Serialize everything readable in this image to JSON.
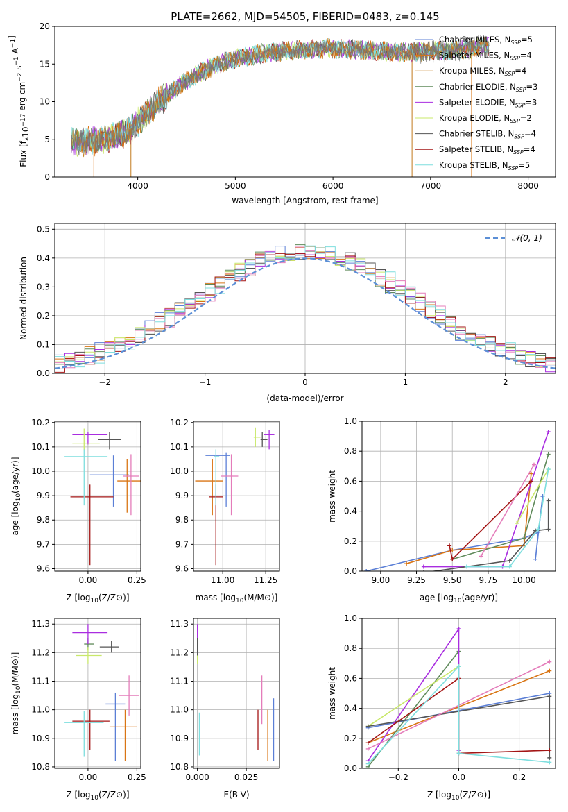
{
  "figure": {
    "title": "PLATE=2662, MJD=54505, FIBERID=0483, z=0.145"
  },
  "colors": {
    "c0": "#5b7fd6",
    "c1": "#d97514",
    "c2": "#5f8a5a",
    "c3": "#a92de0",
    "c4": "#c9e86a",
    "c5": "#555555",
    "c6": "#a31515",
    "c7": "#e47cba",
    "c8": "#7ddede"
  },
  "chart_data": [
    {
      "id": "spectrum",
      "type": "line",
      "xlabel": "wavelength [Angstrom, rest frame]",
      "ylabel": "Flux [f_λ10^-17 erg cm^-2 s^-1 A^-1]",
      "xlim": [
        3150,
        8280
      ],
      "ylim": [
        0,
        20
      ],
      "xticks": [
        4000,
        5000,
        6000,
        7000,
        8000
      ],
      "yticks": [
        0,
        5,
        10,
        15,
        20
      ],
      "grid": false,
      "legend_position": "right",
      "series": [
        {
          "name": "Chabrier MILES, N_SSP=5",
          "color": "#5b7fd6"
        },
        {
          "name": "Salpeter MILES, N_SSP=4",
          "color": "#d97514"
        },
        {
          "name": "Kroupa MILES, N_SSP=4",
          "color": "#c27a1e"
        },
        {
          "name": "Chabrier ELODIE, N_SSP=3",
          "color": "#5f8a5a"
        },
        {
          "name": "Salpeter ELODIE, N_SSP=3",
          "color": "#a92de0"
        },
        {
          "name": "Kroupa ELODIE, N_SSP=2",
          "color": "#c9e86a"
        },
        {
          "name": "Chabrier STELIB, N_SSP=4",
          "color": "#555555"
        },
        {
          "name": "Salpeter STELIB, N_SSP=4",
          "color": "#a31515"
        },
        {
          "name": "Kroupa STELIB, N_SSP=5",
          "color": "#7ddede"
        }
      ],
      "continuum_x": [
        3320,
        3600,
        3900,
        4200,
        4500,
        4800,
        5100,
        5400,
        5700,
        6000,
        6400,
        6800,
        7200,
        7500,
        7600
      ],
      "continuum_y": [
        4.6,
        4.8,
        6.0,
        9.8,
        12.8,
        14.9,
        16.0,
        16.6,
        16.9,
        17.1,
        16.8,
        16.5,
        16.8,
        17.2,
        17.5
      ]
    },
    {
      "id": "residuals",
      "type": "histogram",
      "xlabel": "(data-model)/error",
      "ylabel": "Normed distribution",
      "xlim": [
        -2.5,
        2.5
      ],
      "ylim": [
        0,
        0.52
      ],
      "xticks": [
        -2,
        -1,
        0,
        1,
        2
      ],
      "yticks": [
        0.0,
        0.1,
        0.2,
        0.3,
        0.4,
        0.5
      ],
      "grid": true,
      "legend": [
        {
          "name": "𝒩(0, 1)",
          "style": "dashed",
          "color": "#5b7fd6"
        }
      ],
      "legend_position": "top-right",
      "bin_width": 0.1
    },
    {
      "id": "age-vs-Z",
      "type": "errorbar",
      "xlabel": "Z [log10(Z/Z⊙)]",
      "ylabel": "age  [log10(age/yr)]",
      "xlim": [
        -0.17,
        0.27
      ],
      "ylim": [
        9.59,
        10.205
      ],
      "xticks": [
        0.0,
        0.25
      ],
      "yticks": [
        9.6,
        9.7,
        9.8,
        9.9,
        10.0,
        10.1,
        10.2
      ],
      "grid": true,
      "points": [
        {
          "c": "c0",
          "x": 0.13,
          "xerr": [
            0.12,
            0.08
          ],
          "y": 9.985,
          "yerr": [
            0.13,
            0.08
          ]
        },
        {
          "c": "c1",
          "x": 0.2,
          "xerr": [
            0.05,
            0.07
          ],
          "y": 9.96,
          "yerr": [
            0.13,
            0.09
          ]
        },
        {
          "c": "c3",
          "x": 0.0,
          "xerr": [
            0.08,
            0.1
          ],
          "y": 10.15,
          "yerr": [
            0.04,
            0.01
          ]
        },
        {
          "c": "c4",
          "x": -0.02,
          "xerr": [
            0.06,
            0.08
          ],
          "y": 10.115,
          "yerr": [
            0.03,
            0.06
          ]
        },
        {
          "c": "c5",
          "x": 0.11,
          "xerr": [
            0.06,
            0.06
          ],
          "y": 10.13,
          "yerr": [
            0.04,
            0.03
          ]
        },
        {
          "c": "c6",
          "x": 0.01,
          "xerr": [
            0.1,
            0.12
          ],
          "y": 9.895,
          "yerr": [
            0.28,
            0.05
          ]
        },
        {
          "c": "c7",
          "x": 0.22,
          "xerr": [
            0.04,
            0.04
          ],
          "y": 9.98,
          "yerr": [
            0.16,
            0.09
          ]
        },
        {
          "c": "c8",
          "x": -0.02,
          "xerr": [
            0.1,
            0.12
          ],
          "y": 10.06,
          "yerr": [
            0.2,
            0.03
          ]
        }
      ]
    },
    {
      "id": "age-vs-mass",
      "type": "errorbar",
      "xlabel": "mass [log10(M/M⊙)]",
      "ylabel": "",
      "xlim": [
        10.83,
        11.33
      ],
      "ylim": [
        9.59,
        10.205
      ],
      "xticks": [
        11.0,
        11.25
      ],
      "yticks": [
        9.6,
        9.7,
        9.8,
        9.9,
        10.0,
        10.1,
        10.2
      ],
      "grid": true,
      "points": [
        {
          "c": "c0",
          "x": 11.02,
          "xerr": [
            0.12,
            0.02
          ],
          "y": 10.065,
          "yerr": [
            0.21,
            0.01
          ]
        },
        {
          "c": "c1",
          "x": 10.94,
          "xerr": [
            0.1,
            0.06
          ],
          "y": 9.96,
          "yerr": [
            0.14,
            0.09
          ]
        },
        {
          "c": "c3",
          "x": 11.27,
          "xerr": [
            0.03,
            0.03
          ],
          "y": 10.15,
          "yerr": [
            0.06,
            0.02
          ]
        },
        {
          "c": "c4",
          "x": 11.19,
          "xerr": [
            0.01,
            0.03
          ],
          "y": 10.14,
          "yerr": [
            0.04,
            0.04
          ]
        },
        {
          "c": "c5",
          "x": 11.23,
          "xerr": [
            0.01,
            0.03
          ],
          "y": 10.13,
          "yerr": [
            0.03,
            0.03
          ]
        },
        {
          "c": "c6",
          "x": 10.96,
          "xerr": [
            0.04,
            0.04
          ],
          "y": 9.895,
          "yerr": [
            0.28,
            0.05
          ]
        },
        {
          "c": "c7",
          "x": 11.05,
          "xerr": [
            0.06,
            0.04
          ],
          "y": 9.98,
          "yerr": [
            0.16,
            0.09
          ]
        },
        {
          "c": "c8",
          "x": 10.96,
          "xerr": [
            0.01,
            0.02
          ],
          "y": 10.06,
          "yerr": [
            0.2,
            0.03
          ]
        }
      ]
    },
    {
      "id": "weight-vs-age",
      "type": "line",
      "xlabel": "age  [log10(age/yr)]",
      "ylabel": "mass weight",
      "xlim": [
        8.87,
        10.22
      ],
      "ylim": [
        0,
        1.0
      ],
      "xticks": [
        9.0,
        9.25,
        9.5,
        9.75,
        10.0
      ],
      "yticks": [
        0.0,
        0.2,
        0.4,
        0.6,
        0.8,
        1.0
      ],
      "grid": true,
      "series": [
        {
          "c": "c0",
          "points": [
            [
              8.9,
              0.0
            ],
            [
              9.5,
              0.14
            ],
            [
              10.0,
              0.22
            ],
            [
              10.1,
              0.26
            ],
            [
              10.08,
              0.08
            ],
            [
              10.13,
              0.5
            ]
          ]
        },
        {
          "c": "c1",
          "points": [
            [
              9.18,
              0.05
            ],
            [
              9.5,
              0.14
            ],
            [
              10.0,
              0.17
            ],
            [
              10.05,
              0.65
            ]
          ]
        },
        {
          "c": "c2",
          "points": [
            [
              9.5,
              0.08
            ],
            [
              10.0,
              0.22
            ],
            [
              10.17,
              0.78
            ]
          ]
        },
        {
          "c": "c3",
          "points": [
            [
              9.3,
              0.03
            ],
            [
              9.85,
              0.03
            ],
            [
              10.17,
              0.93
            ]
          ]
        },
        {
          "c": "c4",
          "points": [
            [
              9.95,
              0.32
            ],
            [
              10.17,
              0.68
            ]
          ]
        },
        {
          "c": "c5",
          "points": [
            [
              9.3,
              -0.01
            ],
            [
              9.9,
              0.07
            ],
            [
              10.08,
              0.27
            ],
            [
              10.17,
              0.28
            ],
            [
              10.17,
              0.47
            ]
          ]
        },
        {
          "c": "c6",
          "points": [
            [
              9.48,
              0.17
            ],
            [
              9.5,
              0.08
            ],
            [
              10.05,
              0.6
            ]
          ]
        },
        {
          "c": "c7",
          "points": [
            [
              9.7,
              0.1
            ],
            [
              10.07,
              0.71
            ]
          ]
        },
        {
          "c": "c8",
          "points": [
            [
              9.6,
              0.03
            ],
            [
              9.9,
              0.03
            ],
            [
              10.1,
              0.28
            ],
            [
              10.17,
              0.68
            ]
          ]
        }
      ]
    },
    {
      "id": "mass-vs-Z",
      "type": "errorbar",
      "xlabel": "Z [log10(Z/Z⊙)]",
      "ylabel": "mass [log10(M/M⊙)]",
      "xlim": [
        -0.17,
        0.27
      ],
      "ylim": [
        10.795,
        11.32
      ],
      "xticks": [
        0.0,
        0.25
      ],
      "yticks": [
        10.8,
        10.9,
        11.0,
        11.1,
        11.2,
        11.3
      ],
      "grid": true,
      "points": [
        {
          "c": "c0",
          "x": 0.14,
          "xerr": [
            0.05,
            0.05
          ],
          "y": 11.02,
          "yerr": [
            0.2,
            0.04
          ]
        },
        {
          "c": "c1",
          "x": 0.19,
          "xerr": [
            0.08,
            0.06
          ],
          "y": 10.94,
          "yerr": [
            0.12,
            0.06
          ]
        },
        {
          "c": "c2",
          "x": 0.0,
          "xerr": [
            0.02,
            0.03
          ],
          "y": 11.23,
          "yerr": [
            0.02,
            0.02
          ]
        },
        {
          "c": "c3",
          "x": 0.0,
          "xerr": [
            0.08,
            0.1
          ],
          "y": 11.27,
          "yerr": [
            0.04,
            0.03
          ]
        },
        {
          "c": "c4",
          "x": 0.0,
          "xerr": [
            0.06,
            0.07
          ],
          "y": 11.19,
          "yerr": [
            0.03,
            0.03
          ]
        },
        {
          "c": "c5",
          "x": 0.12,
          "xerr": [
            0.06,
            0.04
          ],
          "y": 11.22,
          "yerr": [
            0.02,
            0.02
          ]
        },
        {
          "c": "c6",
          "x": 0.01,
          "xerr": [
            0.09,
            0.1
          ],
          "y": 10.96,
          "yerr": [
            0.1,
            0.04
          ]
        },
        {
          "c": "c7",
          "x": 0.21,
          "xerr": [
            0.05,
            0.05
          ],
          "y": 11.05,
          "yerr": [
            0.07,
            0.07
          ]
        },
        {
          "c": "c8",
          "x": -0.02,
          "xerr": [
            0.1,
            0.1
          ],
          "y": 10.955,
          "yerr": [
            0.12,
            0.04
          ]
        }
      ]
    },
    {
      "id": "mass-vs-EBV",
      "type": "errorbar",
      "xlabel": "E(B-V)",
      "ylabel": "",
      "xlim": [
        -0.002,
        0.042
      ],
      "ylim": [
        10.795,
        11.32
      ],
      "xticks": [
        0.0,
        0.025
      ],
      "yticks": [
        10.8,
        10.9,
        11.0,
        11.1,
        11.2,
        11.3
      ],
      "grid": true,
      "points": [
        {
          "c": "c0",
          "x": 0.039,
          "xerr": [
            0,
            0
          ],
          "y": 10.97,
          "yerr": [
            0.15,
            0.07
          ]
        },
        {
          "c": "c1",
          "x": 0.036,
          "xerr": [
            0,
            0
          ],
          "y": 10.94,
          "yerr": [
            0.12,
            0.06
          ]
        },
        {
          "c": "c3",
          "x": 0.0,
          "xerr": [
            0,
            0
          ],
          "y": 11.27,
          "yerr": [
            0.04,
            0.03
          ]
        },
        {
          "c": "c4",
          "x": 0.0,
          "xerr": [
            0,
            0
          ],
          "y": 11.19,
          "yerr": [
            0.03,
            0.03
          ]
        },
        {
          "c": "c5",
          "x": 0.0,
          "xerr": [
            0,
            0
          ],
          "y": 11.22,
          "yerr": [
            0.03,
            0.03
          ]
        },
        {
          "c": "c6",
          "x": 0.031,
          "xerr": [
            0,
            0
          ],
          "y": 10.94,
          "yerr": [
            0.08,
            0.06
          ]
        },
        {
          "c": "c7",
          "x": 0.033,
          "xerr": [
            0,
            0
          ],
          "y": 11.04,
          "yerr": [
            0.09,
            0.08
          ]
        },
        {
          "c": "c8",
          "x": 0.001,
          "xerr": [
            0,
            0
          ],
          "y": 10.9,
          "yerr": [
            0.06,
            0.09
          ]
        }
      ]
    },
    {
      "id": "weight-vs-Z",
      "type": "line",
      "xlabel": "Z [log10(Z/Z⊙)]",
      "ylabel": "mass weight",
      "xlim": [
        -0.32,
        0.32
      ],
      "ylim": [
        0,
        1.0
      ],
      "xticks": [
        -0.2,
        0.0,
        0.2
      ],
      "yticks": [
        0.0,
        0.2,
        0.4,
        0.6,
        0.8,
        1.0
      ],
      "grid": true,
      "series": [
        {
          "c": "c0",
          "points": [
            [
              -0.3,
              0.27
            ],
            [
              0.3,
              0.5
            ]
          ]
        },
        {
          "c": "c1",
          "points": [
            [
              -0.3,
              0.17
            ],
            [
              0.3,
              0.65
            ]
          ]
        },
        {
          "c": "c2",
          "points": [
            [
              -0.3,
              0.01
            ],
            [
              0.0,
              0.78
            ]
          ]
        },
        {
          "c": "c3",
          "points": [
            [
              -0.3,
              0.05
            ],
            [
              0.0,
              0.93
            ],
            [
              0.0,
              0.12
            ]
          ]
        },
        {
          "c": "c4",
          "points": [
            [
              -0.3,
              0.28
            ],
            [
              0.0,
              0.68
            ]
          ]
        },
        {
          "c": "c5",
          "points": [
            [
              -0.3,
              0.28
            ],
            [
              0.3,
              0.48
            ],
            [
              0.3,
              0.07
            ]
          ]
        },
        {
          "c": "c6",
          "points": [
            [
              -0.3,
              0.17
            ],
            [
              0.0,
              0.6
            ],
            [
              0.0,
              0.1
            ],
            [
              0.3,
              0.12
            ]
          ]
        },
        {
          "c": "c7",
          "points": [
            [
              -0.3,
              0.13
            ],
            [
              0.3,
              0.71
            ]
          ]
        },
        {
          "c": "c8",
          "points": [
            [
              -0.3,
              0.03
            ],
            [
              0.0,
              0.68
            ],
            [
              0.0,
              0.1
            ],
            [
              0.3,
              0.04
            ]
          ]
        }
      ]
    }
  ]
}
